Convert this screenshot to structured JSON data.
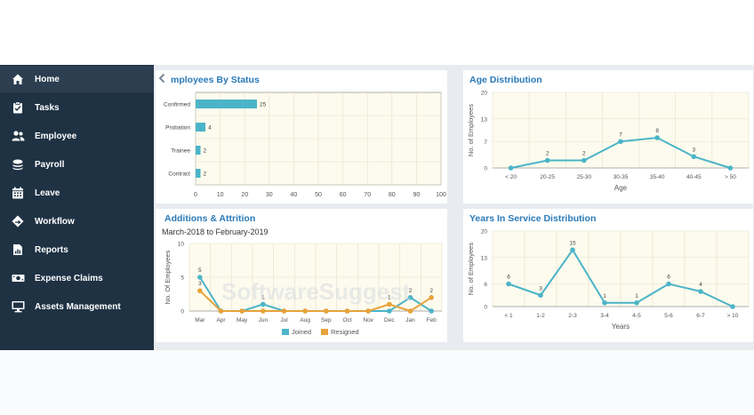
{
  "colors": {
    "accent": "#2a7ab8",
    "teal": "#4bb4c8",
    "orange": "#e8a33a",
    "sidebar": "#1f3244"
  },
  "sidebar": {
    "items": [
      {
        "label": "Home",
        "icon": "home-icon"
      },
      {
        "label": "Tasks",
        "icon": "clipboard-icon"
      },
      {
        "label": "Employee",
        "icon": "people-icon"
      },
      {
        "label": "Payroll",
        "icon": "coins-icon"
      },
      {
        "label": "Leave",
        "icon": "calendar-icon"
      },
      {
        "label": "Workflow",
        "icon": "workflow-icon"
      },
      {
        "label": "Reports",
        "icon": "report-icon"
      },
      {
        "label": "Expense Claims",
        "icon": "money-icon"
      },
      {
        "label": "Assets Management",
        "icon": "monitor-icon"
      }
    ]
  },
  "panels": {
    "status": {
      "title": "mployees By Status"
    },
    "age": {
      "title": "Age Distribution"
    },
    "additions": {
      "title": "Additions & Attrition",
      "subtitle": "March-2018 to February-2019"
    },
    "years": {
      "title": "Years In Service Distribution"
    }
  },
  "watermark": "SoftwareSuggest",
  "chart_data": [
    {
      "type": "bar",
      "orientation": "horizontal",
      "title": "mployees By Status",
      "categories": [
        "Confirmed",
        "Probation",
        "Trainee",
        "Contract"
      ],
      "values": [
        25,
        4,
        2,
        2
      ],
      "xlim": [
        0,
        100
      ],
      "xticks": [
        0,
        10,
        20,
        30,
        40,
        50,
        60,
        70,
        80,
        90,
        100
      ]
    },
    {
      "type": "line",
      "title": "Age Distribution",
      "x": [
        "< 20",
        "20-25",
        "25-30",
        "30-35",
        "35-40",
        "40-45",
        "> 50"
      ],
      "values": [
        0,
        2,
        2,
        7,
        8,
        3,
        0
      ],
      "labels": [
        "",
        "2",
        "2",
        "7",
        "8",
        "3",
        ""
      ],
      "xlabel": "Age",
      "ylabel": "No. of Employees",
      "ylim": [
        0,
        20
      ],
      "yticks": [
        0,
        7,
        13,
        20
      ]
    },
    {
      "type": "line",
      "title": "Additions & Attrition",
      "x": [
        "Mar",
        "Apr",
        "May",
        "Jun",
        "Jul",
        "Aug",
        "Sep",
        "Oct",
        "Nov",
        "Dec",
        "Jan",
        "Feb"
      ],
      "series": [
        {
          "name": "Joined",
          "values": [
            5,
            0,
            0,
            1,
            0,
            0,
            0,
            0,
            0,
            0,
            2,
            0
          ],
          "labels": [
            "5",
            "",
            "",
            "1",
            "",
            "",
            "",
            "",
            "",
            "",
            "2",
            ""
          ]
        },
        {
          "name": "Resigned",
          "values": [
            3,
            0,
            0,
            0,
            0,
            0,
            0,
            0,
            0,
            1,
            0,
            2
          ],
          "labels": [
            "3",
            "",
            "",
            "",
            "",
            "",
            "",
            "",
            "",
            "1",
            "",
            "2"
          ]
        }
      ],
      "ylabel": "No. Of Employees",
      "ylim": [
        0,
        10
      ],
      "yticks": [
        0,
        5,
        10
      ],
      "legend": "bottom"
    },
    {
      "type": "line",
      "title": "Years In Service Distribution",
      "x": [
        "< 1",
        "1-2",
        "2-3",
        "3-4",
        "4-5",
        "5-6",
        "6-7",
        "> 10"
      ],
      "values": [
        6,
        3,
        15,
        1,
        1,
        6,
        4,
        0
      ],
      "labels": [
        "6",
        "3",
        "15",
        "1",
        "1",
        "6",
        "4",
        ""
      ],
      "xlabel": "Years",
      "ylabel": "No. of Employees",
      "ylim": [
        0,
        20
      ],
      "yticks": [
        0,
        6,
        13,
        20
      ]
    }
  ]
}
